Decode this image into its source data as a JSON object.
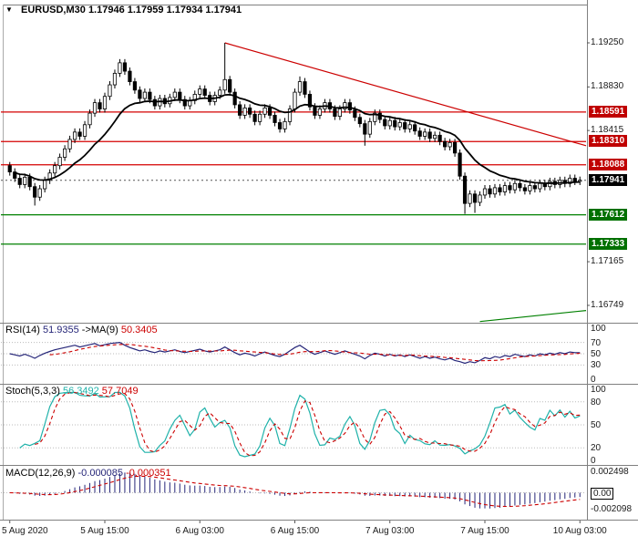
{
  "header": {
    "dropdown_icon": "▼",
    "info": "EURUSD,M30 1.17946 1.17959 1.17934 1.17941"
  },
  "colors": {
    "bull": "#ffffff",
    "bear": "#000000",
    "wick": "#000000",
    "ma": "#000000",
    "rsi": "#252578",
    "rsi_ma": "#cc0000",
    "stoch_k": "#20b2aa",
    "stoch_d": "#cc0000",
    "macd_hist": "#252578",
    "macd_signal": "#cc0000",
    "resistance": "#d40000",
    "support": "#008000",
    "frame": "#808080",
    "guide": "#bbbbbb",
    "axis_text": "#1a1a1a"
  },
  "chart_data": {
    "type": "candlestick",
    "symbol": "EURUSD",
    "timeframe": "M30",
    "current": {
      "open": 1.17946,
      "high": 1.17959,
      "low": 1.17934,
      "close": 1.17941
    },
    "y_axis": {
      "min": 1.16601,
      "max": 1.19606,
      "ticks": [
        {
          "label": "1.19250",
          "price": 1.1925
        },
        {
          "label": "1.18830",
          "price": 1.1883
        },
        {
          "label": "1.18415",
          "price": 1.18415
        },
        {
          "label": "1.17165",
          "price": 1.17165
        },
        {
          "label": "1.16749",
          "price": 1.16749
        }
      ]
    },
    "x_labels": [
      {
        "bar": 0,
        "label": "5 Aug 2020"
      },
      {
        "bar": 19,
        "label": "5 Aug 15:00"
      },
      {
        "bar": 38,
        "label": "6 Aug 03:00"
      },
      {
        "bar": 57,
        "label": "6 Aug 15:00"
      },
      {
        "bar": 76,
        "label": "7 Aug 03:00"
      },
      {
        "bar": 95,
        "label": "7 Aug 15:00"
      },
      {
        "bar": 114,
        "label": "10 Aug 03:00"
      }
    ],
    "open_first": 1.1808,
    "default_wick": 0.00035,
    "closes": [
      1.1802,
      1.1796,
      1.179,
      1.1797,
      1.1788,
      1.1778,
      1.1786,
      1.1794,
      1.1801,
      1.1808,
      1.1816,
      1.1824,
      1.1833,
      1.184,
      1.1836,
      1.1847,
      1.1858,
      1.1868,
      1.1862,
      1.1874,
      1.1885,
      1.1896,
      1.1906,
      1.1898,
      1.1888,
      1.188,
      1.1872,
      1.1878,
      1.1871,
      1.1865,
      1.1872,
      1.1867,
      1.1873,
      1.1878,
      1.1871,
      1.1865,
      1.187,
      1.1876,
      1.1881,
      1.1875,
      1.1869,
      1.1875,
      1.188,
      1.189,
      1.1878,
      1.1866,
      1.1856,
      1.1863,
      1.1857,
      1.185,
      1.1857,
      1.1863,
      1.1856,
      1.1849,
      1.1843,
      1.185,
      1.1862,
      1.1878,
      1.1888,
      1.1876,
      1.1864,
      1.1856,
      1.1862,
      1.1868,
      1.1862,
      1.1855,
      1.1862,
      1.1868,
      1.1861,
      1.1854,
      1.1848,
      1.1838,
      1.185,
      1.1858,
      1.1852,
      1.1846,
      1.1851,
      1.1845,
      1.1849,
      1.1843,
      1.1847,
      1.1841,
      1.1836,
      1.184,
      1.1834,
      1.1837,
      1.1831,
      1.1826,
      1.183,
      1.182,
      1.1798,
      1.1772,
      1.1781,
      1.1773,
      1.178,
      1.1786,
      1.1781,
      1.1787,
      1.1783,
      1.1789,
      1.1785,
      1.1791,
      1.1787,
      1.1784,
      1.1789,
      1.1786,
      1.1791,
      1.1788,
      1.1793,
      1.179,
      1.1794,
      1.1791,
      1.1796,
      1.1793,
      1.17941
    ],
    "wick_overrides": {
      "5": {
        "low": 1.177
      },
      "43": {
        "high": 1.1925
      },
      "58": {
        "high": 1.1893
      },
      "71": {
        "low": 1.1827
      },
      "91": {
        "low": 1.1762
      },
      "93": {
        "low": 1.1763
      }
    },
    "ma_period": 15,
    "levels": {
      "resistance": [
        1.18591,
        1.1831,
        1.18088
      ],
      "support": [
        1.17612,
        1.17333
      ],
      "current_price": 1.17941
    },
    "trendlines": [
      {
        "name": "descending-trendline",
        "color": "#cc0000",
        "from_bar": 43,
        "from_price": 1.1925,
        "to_price": 1.1827
      },
      {
        "name": "ascending-trendline",
        "color": "#008000",
        "from_bar": 94,
        "from_price": 1.16595,
        "to_price": 1.167
      }
    ],
    "indicators": {
      "rsi": {
        "period": 14,
        "ma_period": 9,
        "value": 51.9355,
        "ma_value": 50.3405,
        "label_parts": [
          [
            "RSI(14) ",
            "#000000"
          ],
          [
            "51.9355",
            "#252578"
          ],
          [
            " ->MA(9) ",
            "#000000"
          ],
          [
            "50.3405",
            "#cc0000"
          ]
        ],
        "ticks": [
          100,
          70,
          50,
          30,
          0
        ],
        "guides": [
          70,
          50,
          30
        ],
        "values": [
          50,
          48,
          46,
          49,
          46,
          42,
          47,
          51,
          54,
          57,
          59,
          61,
          63,
          65,
          62,
          64,
          66,
          68,
          64,
          66,
          68,
          69,
          70,
          65,
          61,
          58,
          55,
          57,
          54,
          52,
          55,
          53,
          55,
          57,
          54,
          52,
          54,
          56,
          58,
          55,
          53,
          55,
          57,
          62,
          57,
          52,
          48,
          51,
          49,
          46,
          50,
          53,
          50,
          47,
          45,
          49,
          55,
          61,
          65,
          59,
          53,
          49,
          52,
          55,
          52,
          49,
          52,
          55,
          52,
          49,
          46,
          41,
          47,
          51,
          49,
          46,
          49,
          46,
          48,
          45,
          48,
          45,
          42,
          45,
          42,
          44,
          41,
          39,
          42,
          38,
          36,
          33,
          36,
          34,
          38,
          43,
          41,
          45,
          43,
          47,
          45,
          49,
          47,
          45,
          48,
          46,
          50,
          48,
          51,
          49,
          52,
          50,
          53,
          52,
          51.94
        ]
      },
      "stoch": {
        "period": 5,
        "slowing": 3,
        "d_period": 3,
        "k_value": 56.3492,
        "d_value": 57.7049,
        "label_parts": [
          [
            "Stoch(5,3,3) ",
            "#000000"
          ],
          [
            "56.3492",
            "#20b2aa"
          ],
          [
            " 57.7049",
            "#cc0000"
          ]
        ],
        "ticks": [
          100,
          80,
          50,
          20,
          0
        ],
        "guides": [
          80,
          50,
          20
        ]
      },
      "macd": {
        "fast": 12,
        "slow": 26,
        "signal_period": 9,
        "value": -8.5e-05,
        "signal": -0.000351,
        "label_parts": [
          [
            "MACD(12,26,9) ",
            "#000000"
          ],
          [
            "-0.000085",
            "#252578"
          ],
          [
            " -0.000351",
            "#cc0000"
          ]
        ],
        "range": 0.0031,
        "ticks": [
          {
            "label": "0.002498",
            "value": 0.002498,
            "boxed": false
          },
          {
            "label": "0.00",
            "value": 0,
            "boxed": true
          },
          {
            "label": "-0.002098",
            "value": -0.002098,
            "boxed": false
          }
        ]
      }
    }
  }
}
